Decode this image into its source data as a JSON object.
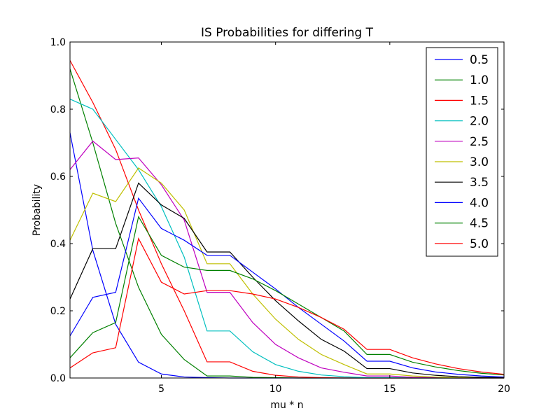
{
  "chart_data": {
    "type": "line",
    "title": "IS Probabilities for differing T",
    "xlabel": "mu * n",
    "ylabel": "Probability",
    "xlim": [
      1,
      20
    ],
    "ylim": [
      0,
      1
    ],
    "xticks": [
      5,
      10,
      15,
      20
    ],
    "xtick_labels": [
      "5",
      "10",
      "15",
      "20"
    ],
    "yticks": [
      0,
      0.2,
      0.4,
      0.6,
      0.8,
      1.0
    ],
    "ytick_labels": [
      "0.0",
      "0.2",
      "0.4",
      "0.6",
      "0.8",
      "1.0"
    ],
    "grid": false,
    "legend_position": "top-right",
    "x": [
      1,
      2,
      3,
      4,
      5,
      6,
      7,
      8,
      9,
      10,
      11,
      12,
      13,
      14,
      15,
      16,
      17,
      18,
      19,
      20
    ],
    "series": [
      {
        "name": "0.5",
        "color": "#0000ff",
        "values": [
          0.73,
          0.38,
          0.16,
          0.047,
          0.012,
          0.003,
          0.001,
          0,
          0,
          0,
          0,
          0,
          0,
          0,
          0,
          0,
          0,
          0,
          0,
          0
        ]
      },
      {
        "name": "1.0",
        "color": "#008000",
        "values": [
          0.92,
          0.7,
          0.46,
          0.27,
          0.13,
          0.055,
          0.006,
          0.006,
          0.002,
          0.001,
          0,
          0,
          0,
          0,
          0,
          0,
          0,
          0,
          0,
          0
        ]
      },
      {
        "name": "1.5",
        "color": "#ff0000",
        "values": [
          0.945,
          0.82,
          0.68,
          0.5,
          0.34,
          0.2,
          0.048,
          0.048,
          0.02,
          0.008,
          0.003,
          0.001,
          0,
          0,
          0,
          0,
          0,
          0,
          0,
          0
        ]
      },
      {
        "name": "2.0",
        "color": "#00bfbf",
        "values": [
          0.83,
          0.8,
          0.71,
          0.62,
          0.51,
          0.36,
          0.14,
          0.14,
          0.078,
          0.04,
          0.02,
          0.009,
          0.004,
          0.001,
          0.001,
          0,
          0,
          0,
          0,
          0
        ]
      },
      {
        "name": "2.5",
        "color": "#bf00bf",
        "values": [
          0.62,
          0.705,
          0.65,
          0.655,
          0.575,
          0.47,
          0.255,
          0.255,
          0.165,
          0.1,
          0.06,
          0.03,
          0.017,
          0.006,
          0.006,
          0.002,
          0.001,
          0,
          0,
          0
        ]
      },
      {
        "name": "3.0",
        "color": "#bfbf00",
        "values": [
          0.41,
          0.55,
          0.525,
          0.625,
          0.58,
          0.5,
          0.34,
          0.34,
          0.25,
          0.175,
          0.115,
          0.07,
          0.04,
          0.012,
          0.012,
          0.006,
          0.003,
          0.001,
          0,
          0
        ]
      },
      {
        "name": "3.5",
        "color": "#000000",
        "values": [
          0.235,
          0.385,
          0.385,
          0.58,
          0.515,
          0.475,
          0.375,
          0.375,
          0.3,
          0.23,
          0.17,
          0.115,
          0.08,
          0.028,
          0.028,
          0.015,
          0.008,
          0.004,
          0.002,
          0.001
        ]
      },
      {
        "name": "4.0",
        "color": "#0000ff",
        "values": [
          0.125,
          0.24,
          0.255,
          0.535,
          0.445,
          0.41,
          0.365,
          0.365,
          0.315,
          0.265,
          0.21,
          0.16,
          0.11,
          0.05,
          0.05,
          0.03,
          0.018,
          0.011,
          0.006,
          0.003
        ]
      },
      {
        "name": "4.5",
        "color": "#008000",
        "values": [
          0.06,
          0.135,
          0.165,
          0.48,
          0.365,
          0.33,
          0.32,
          0.32,
          0.295,
          0.26,
          0.22,
          0.18,
          0.14,
          0.07,
          0.07,
          0.047,
          0.033,
          0.022,
          0.014,
          0.009
        ]
      },
      {
        "name": "5.0",
        "color": "#ff0000",
        "values": [
          0.03,
          0.075,
          0.09,
          0.415,
          0.285,
          0.25,
          0.26,
          0.26,
          0.25,
          0.235,
          0.21,
          0.18,
          0.145,
          0.085,
          0.085,
          0.06,
          0.042,
          0.028,
          0.018,
          0.011
        ]
      }
    ]
  }
}
